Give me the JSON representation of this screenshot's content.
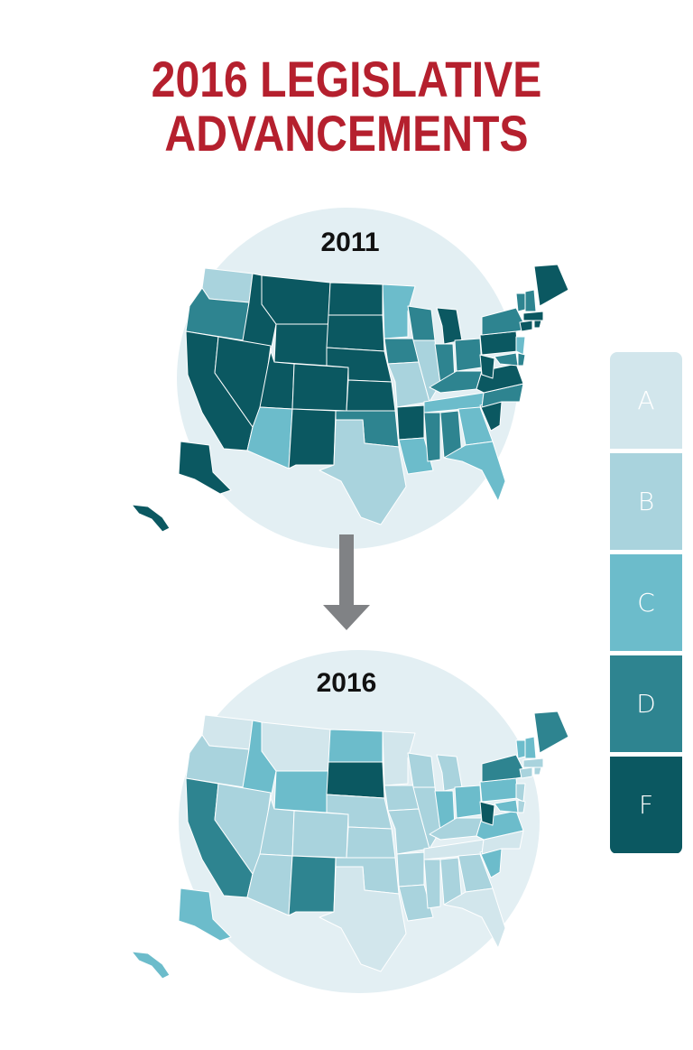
{
  "title": {
    "line1": "2016 LEGISLATIVE",
    "line2": "ADVANCEMENTS"
  },
  "maps": [
    {
      "year": "2011"
    },
    {
      "year": "2016"
    }
  ],
  "legend": [
    {
      "grade": "A",
      "color": "#d2e6ec"
    },
    {
      "grade": "B",
      "color": "#a9d3dd"
    },
    {
      "grade": "C",
      "color": "#6cbccb"
    },
    {
      "grade": "D",
      "color": "#2e8490"
    },
    {
      "grade": "F",
      "color": "#0b5861"
    }
  ],
  "colors": {
    "title": "#b5202e",
    "circle": "#e3eff3",
    "arrow": "#808285"
  }
}
